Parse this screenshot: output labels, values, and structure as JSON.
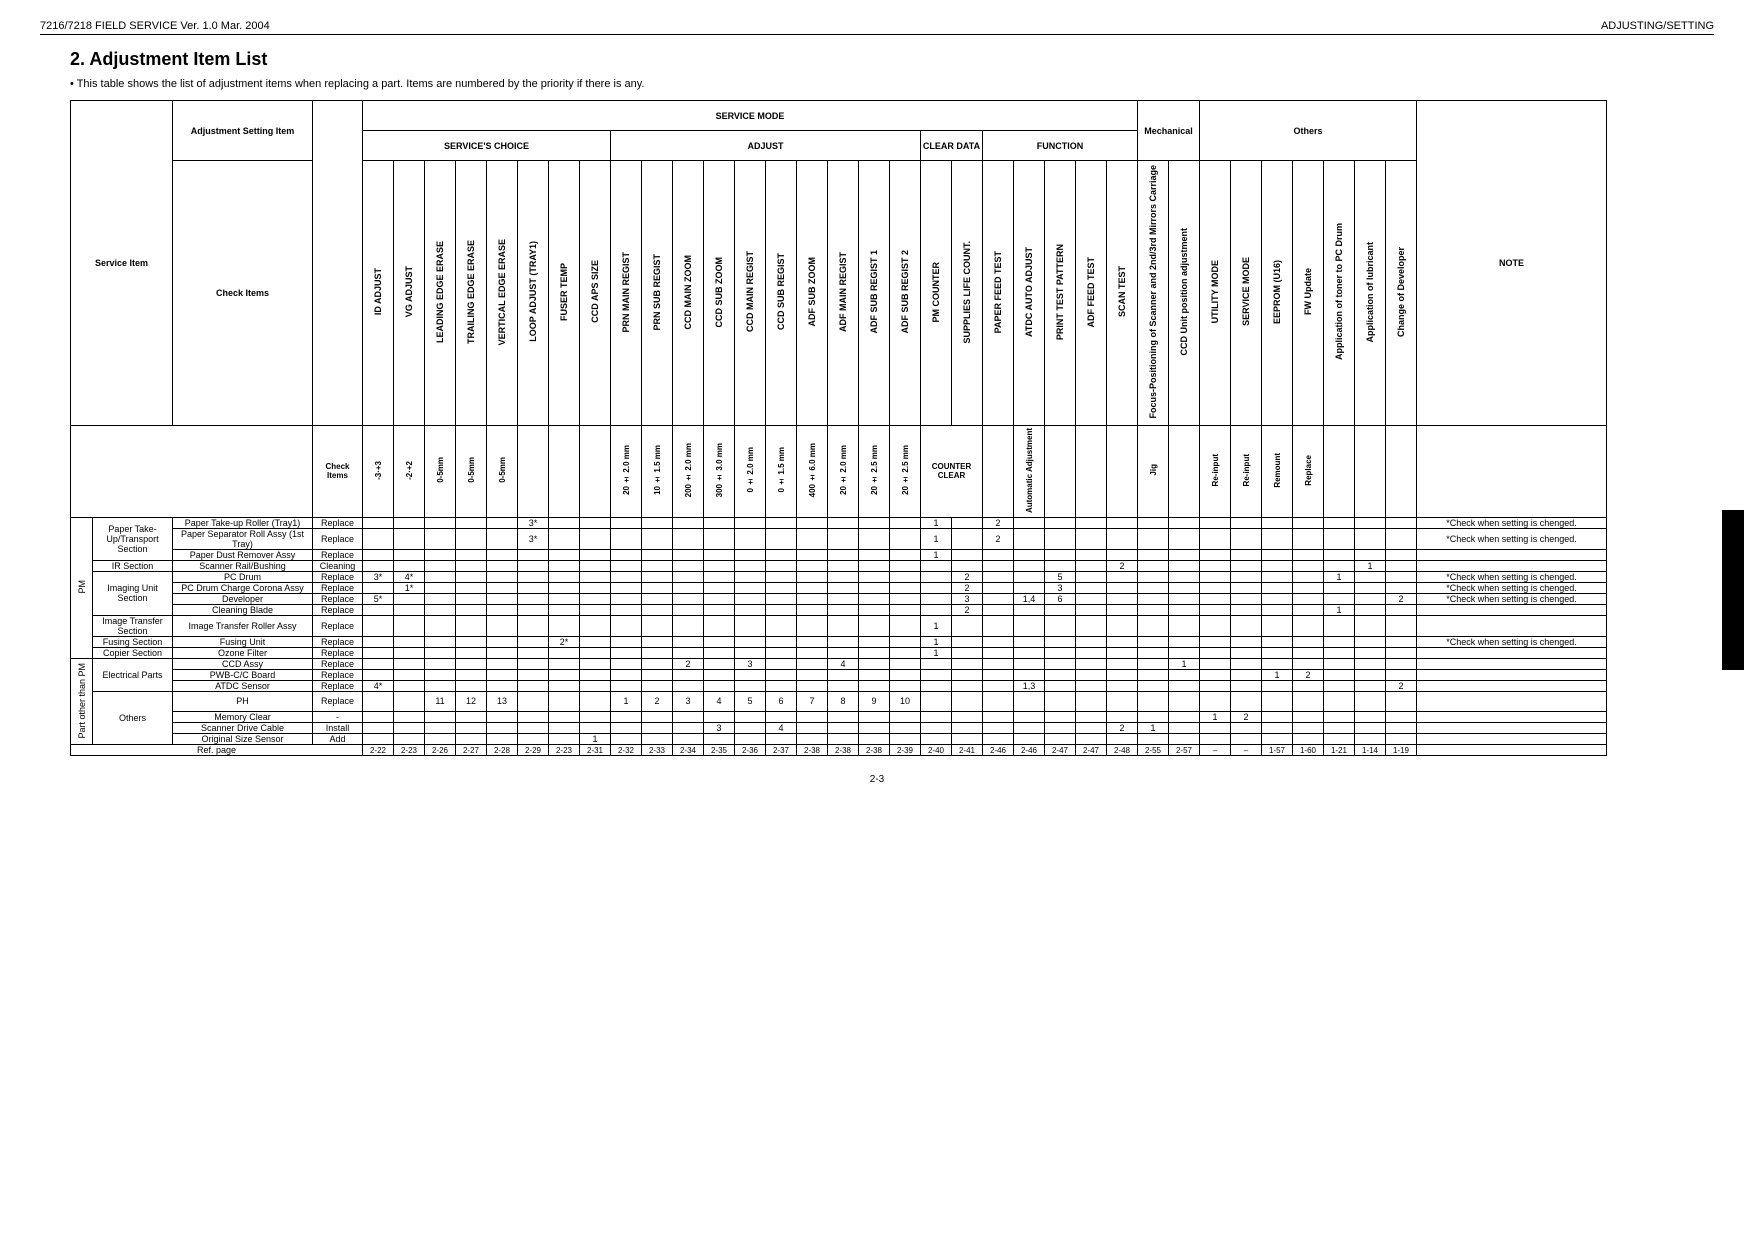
{
  "header": {
    "left": "7216/7218 FIELD SERVICE Ver. 1.0 Mar. 2004",
    "right": "ADJUSTING/SETTING"
  },
  "title": "2.   Adjustment Item List",
  "intro": "• This table shows the list of adjustment items when replacing a part. Items are numbered by the priority if there is any.",
  "group_headers": {
    "service_mode": "SERVICE MODE",
    "service_choice": "SERVICE'S CHOICE",
    "adjust": "ADJUST",
    "clear_data": "CLEAR DATA",
    "function": "FUNCTION",
    "mechanical": "Mechanical",
    "others": "Others"
  },
  "col_headers": {
    "service_item": "Service Item",
    "adj_setting_item": "Adjustment Setting Item",
    "check_items": "Check Items",
    "note": "NOTE",
    "c": [
      "ID ADJUST",
      "VG ADJUST",
      "LEADING EDGE ERASE",
      "TRAILING EDGE ERASE",
      "VERTICAL EDGE ERASE",
      "LOOP ADJUST (TRAY1)",
      "FUSER TEMP",
      "CCD APS SIZE",
      "PRN MAIN REGIST",
      "PRN SUB REGIST",
      "CCD MAIN ZOOM",
      "CCD SUB ZOOM",
      "CCD MAIN REGIST",
      "CCD SUB REGIST",
      "ADF SUB ZOOM",
      "ADF MAIN REGIST",
      "ADF SUB REGIST 1",
      "ADF SUB REGIST 2",
      "PM COUNTER",
      "SUPPLIES LIFE COUNT.",
      "PAPER FEED TEST",
      "ATDC AUTO ADJUST",
      "PRINT TEST PATTERN",
      "ADF FEED TEST",
      "SCAN TEST",
      "Focus-Positioning of Scanner and 2nd/3rd Mirrors Carriage",
      "CCD Unit position adjustment",
      "UTILITY MODE",
      "SERVICE MODE",
      "EEPROM (U16)",
      "FW Update",
      "Application of toner to PC Drum",
      "Application of lubricant",
      "Change of Developer"
    ],
    "sub": [
      "-3·+3",
      "-2·+2",
      "0-5mm",
      "0-5mm",
      "0-5mm",
      "",
      "",
      "",
      "20 ± 2.0 mm",
      "10 ± 1.5 mm",
      "200 ± 2.0 mm",
      "300 ± 3.0 mm",
      "0 ± 2.0 mm",
      "0 ± 1.5 mm",
      "400 ± 6.0 mm",
      "20 ± 2.0 mm",
      "20 ± 2.5 mm",
      "20 ± 2.5 mm",
      "COUNTER CLEAR",
      "",
      "",
      "Automatic Adjustment",
      "",
      "",
      "",
      "Jig",
      "",
      "Re-input",
      "Re-input",
      "Remount",
      "Replace",
      "",
      "",
      ""
    ]
  },
  "rows": [
    {
      "cat": "PM",
      "svc": "Paper Take-Up/Transport Section",
      "item": "Paper Take-up Roller (Tray1)",
      "chk": "Replace",
      "v": [
        "",
        "",
        "",
        "",
        "",
        "3*",
        "",
        "",
        "",
        "",
        "",
        "",
        "",
        "",
        "",
        "",
        "",
        "",
        "1",
        "",
        "2",
        "",
        "",
        "",
        "",
        "",
        "",
        "",
        "",
        "",
        "",
        "",
        "",
        ""
      ],
      "note": "*Check when setting is chenged."
    },
    {
      "cat": "",
      "svc": "",
      "item": "Paper Separator Roll Assy (1st Tray)",
      "chk": "Replace",
      "v": [
        "",
        "",
        "",
        "",
        "",
        "3*",
        "",
        "",
        "",
        "",
        "",
        "",
        "",
        "",
        "",
        "",
        "",
        "",
        "1",
        "",
        "2",
        "",
        "",
        "",
        "",
        "",
        "",
        "",
        "",
        "",
        "",
        "",
        "",
        ""
      ],
      "note": "*Check when setting is chenged."
    },
    {
      "cat": "",
      "svc": "",
      "item": "Paper Dust Remover Assy",
      "chk": "Replace",
      "v": [
        "",
        "",
        "",
        "",
        "",
        "",
        "",
        "",
        "",
        "",
        "",
        "",
        "",
        "",
        "",
        "",
        "",
        "",
        "1",
        "",
        "",
        "",
        "",
        "",
        "",
        "",
        "",
        "",
        "",
        "",
        "",
        "",
        "",
        ""
      ],
      "note": ""
    },
    {
      "cat": "",
      "svc": "IR Section",
      "item": "Scanner Rail/Bushing",
      "chk": "Cleaning",
      "v": [
        "",
        "",
        "",
        "",
        "",
        "",
        "",
        "",
        "",
        "",
        "",
        "",
        "",
        "",
        "",
        "",
        "",
        "",
        "",
        "",
        "",
        "",
        "",
        "",
        "2",
        "",
        "",
        "",
        "",
        "",
        "",
        "",
        "1",
        ""
      ],
      "note": ""
    },
    {
      "cat": "",
      "svc": "Imaging Unit Section",
      "item": "PC Drum",
      "chk": "Replace",
      "v": [
        "3*",
        "4*",
        "",
        "",
        "",
        "",
        "",
        "",
        "",
        "",
        "",
        "",
        "",
        "",
        "",
        "",
        "",
        "",
        "",
        "2",
        "",
        "",
        "5",
        "",
        "",
        "",
        "",
        "",
        "",
        "",
        "",
        "1",
        "",
        ""
      ],
      "note": "*Check when setting is chenged."
    },
    {
      "cat": "",
      "svc": "",
      "item": "PC Drum Charge Corona Assy",
      "chk": "Replace",
      "v": [
        "",
        "1*",
        "",
        "",
        "",
        "",
        "",
        "",
        "",
        "",
        "",
        "",
        "",
        "",
        "",
        "",
        "",
        "",
        "",
        "2",
        "",
        "",
        "3",
        "",
        "",
        "",
        "",
        "",
        "",
        "",
        "",
        "",
        "",
        ""
      ],
      "note": "*Check when setting is chenged."
    },
    {
      "cat": "",
      "svc": "",
      "item": "Developer",
      "chk": "Replace",
      "v": [
        "5*",
        "",
        "",
        "",
        "",
        "",
        "",
        "",
        "",
        "",
        "",
        "",
        "",
        "",
        "",
        "",
        "",
        "",
        "",
        "3",
        "",
        "1,4",
        "6",
        "",
        "",
        "",
        "",
        "",
        "",
        "",
        "",
        "",
        "",
        "2"
      ],
      "note": "*Check when setting is chenged."
    },
    {
      "cat": "",
      "svc": "",
      "item": "Cleaning Blade",
      "chk": "Replace",
      "v": [
        "",
        "",
        "",
        "",
        "",
        "",
        "",
        "",
        "",
        "",
        "",
        "",
        "",
        "",
        "",
        "",
        "",
        "",
        "",
        "2",
        "",
        "",
        "",
        "",
        "",
        "",
        "",
        "",
        "",
        "",
        "",
        "1",
        "",
        ""
      ],
      "note": ""
    },
    {
      "cat": "",
      "svc": "Image Transfer Section",
      "item": "Image Transfer Roller Assy",
      "chk": "Replace",
      "v": [
        "",
        "",
        "",
        "",
        "",
        "",
        "",
        "",
        "",
        "",
        "",
        "",
        "",
        "",
        "",
        "",
        "",
        "",
        "1",
        "",
        "",
        "",
        "",
        "",
        "",
        "",
        "",
        "",
        "",
        "",
        "",
        "",
        "",
        ""
      ],
      "note": ""
    },
    {
      "cat": "",
      "svc": "Fusing Section",
      "item": "Fusing Unit",
      "chk": "Replace",
      "v": [
        "",
        "",
        "",
        "",
        "",
        "",
        "2*",
        "",
        "",
        "",
        "",
        "",
        "",
        "",
        "",
        "",
        "",
        "",
        "1",
        "",
        "",
        "",
        "",
        "",
        "",
        "",
        "",
        "",
        "",
        "",
        "",
        "",
        "",
        ""
      ],
      "note": "*Check when setting is chenged."
    },
    {
      "cat": "",
      "svc": "Copier Section",
      "item": "Ozone Filter",
      "chk": "Replace",
      "v": [
        "",
        "",
        "",
        "",
        "",
        "",
        "",
        "",
        "",
        "",
        "",
        "",
        "",
        "",
        "",
        "",
        "",
        "",
        "1",
        "",
        "",
        "",
        "",
        "",
        "",
        "",
        "",
        "",
        "",
        "",
        "",
        "",
        "",
        ""
      ],
      "note": ""
    },
    {
      "cat": "Part other than PM",
      "svc": "Electrical Parts",
      "item": "CCD Assy",
      "chk": "Replace",
      "v": [
        "",
        "",
        "",
        "",
        "",
        "",
        "",
        "",
        "",
        "",
        "2",
        "",
        "3",
        "",
        "",
        "4",
        "",
        "",
        "",
        "",
        "",
        "",
        "",
        "",
        "",
        "",
        "1",
        "",
        "",
        "",
        "",
        "",
        "",
        ""
      ],
      "note": ""
    },
    {
      "cat": "",
      "svc": "",
      "item": "PWB-C/C Board",
      "chk": "Replace",
      "v": [
        "",
        "",
        "",
        "",
        "",
        "",
        "",
        "",
        "",
        "",
        "",
        "",
        "",
        "",
        "",
        "",
        "",
        "",
        "",
        "",
        "",
        "",
        "",
        "",
        "",
        "",
        "",
        "",
        "",
        "1",
        "2",
        "",
        "",
        ""
      ],
      "note": ""
    },
    {
      "cat": "",
      "svc": "",
      "item": "ATDC Sensor",
      "chk": "Replace",
      "v": [
        "4*",
        "",
        "",
        "",
        "",
        "",
        "",
        "",
        "",
        "",
        "",
        "",
        "",
        "",
        "",
        "",
        "",
        "",
        "",
        "",
        "",
        "1,3",
        "",
        "",
        "",
        "",
        "",
        "",
        "",
        "",
        "",
        "",
        "",
        "2"
      ],
      "note": ""
    },
    {
      "cat": "",
      "svc": "Others",
      "item": "PH",
      "chk": "Replace",
      "v": [
        "",
        "",
        "11",
        "12",
        "13",
        "",
        "",
        "",
        "1",
        "2",
        "3",
        "4",
        "5",
        "6",
        "7",
        "8",
        "9",
        "10",
        "",
        "",
        "",
        "",
        "",
        "",
        "",
        "",
        "",
        "",
        "",
        "",
        "",
        "",
        "",
        ""
      ],
      "note": ""
    },
    {
      "cat": "",
      "svc": "",
      "item": "Memory Clear",
      "chk": "-",
      "v": [
        "",
        "",
        "",
        "",
        "",
        "",
        "",
        "",
        "",
        "",
        "",
        "",
        "",
        "",
        "",
        "",
        "",
        "",
        "",
        "",
        "",
        "",
        "",
        "",
        "",
        "",
        "",
        "1",
        "2",
        "",
        "",
        "",
        "",
        ""
      ],
      "note": ""
    },
    {
      "cat": "",
      "svc": "",
      "item": "Scanner Drive Cable",
      "chk": "Install",
      "v": [
        "",
        "",
        "",
        "",
        "",
        "",
        "",
        "",
        "",
        "",
        "",
        "3",
        "",
        "4",
        "",
        "",
        "",
        "",
        "",
        "",
        "",
        "",
        "",
        "",
        "2",
        "1",
        "",
        "",
        "",
        "",
        "",
        "",
        "",
        ""
      ],
      "note": ""
    },
    {
      "cat": "",
      "svc": "",
      "item": "Original Size Sensor",
      "chk": "Add",
      "v": [
        "",
        "",
        "",
        "",
        "",
        "",
        "",
        "1",
        "",
        "",
        "",
        "",
        "",
        "",
        "",
        "",
        "",
        "",
        "",
        "",
        "",
        "",
        "",
        "",
        "",
        "",
        "",
        "",
        "",
        "",
        "",
        "",
        "",
        ""
      ],
      "note": ""
    }
  ],
  "ref_row": {
    "label": "Ref. page",
    "v": [
      "2-22",
      "2-23",
      "2-26",
      "2-27",
      "2-28",
      "2-29",
      "2-23",
      "2-31",
      "2-32",
      "2-33",
      "2-34",
      "2-35",
      "2-36",
      "2-37",
      "2-38",
      "2-38",
      "2-38",
      "2-39",
      "2-40",
      "2-41",
      "2-46",
      "2-46",
      "2-47",
      "2-47",
      "2-48",
      "2-55",
      "2-57",
      "–",
      "–",
      "1-57",
      "1-60",
      "1-21",
      "1-14",
      "1-19"
    ],
    "note": ""
  },
  "page_num": "2-3"
}
